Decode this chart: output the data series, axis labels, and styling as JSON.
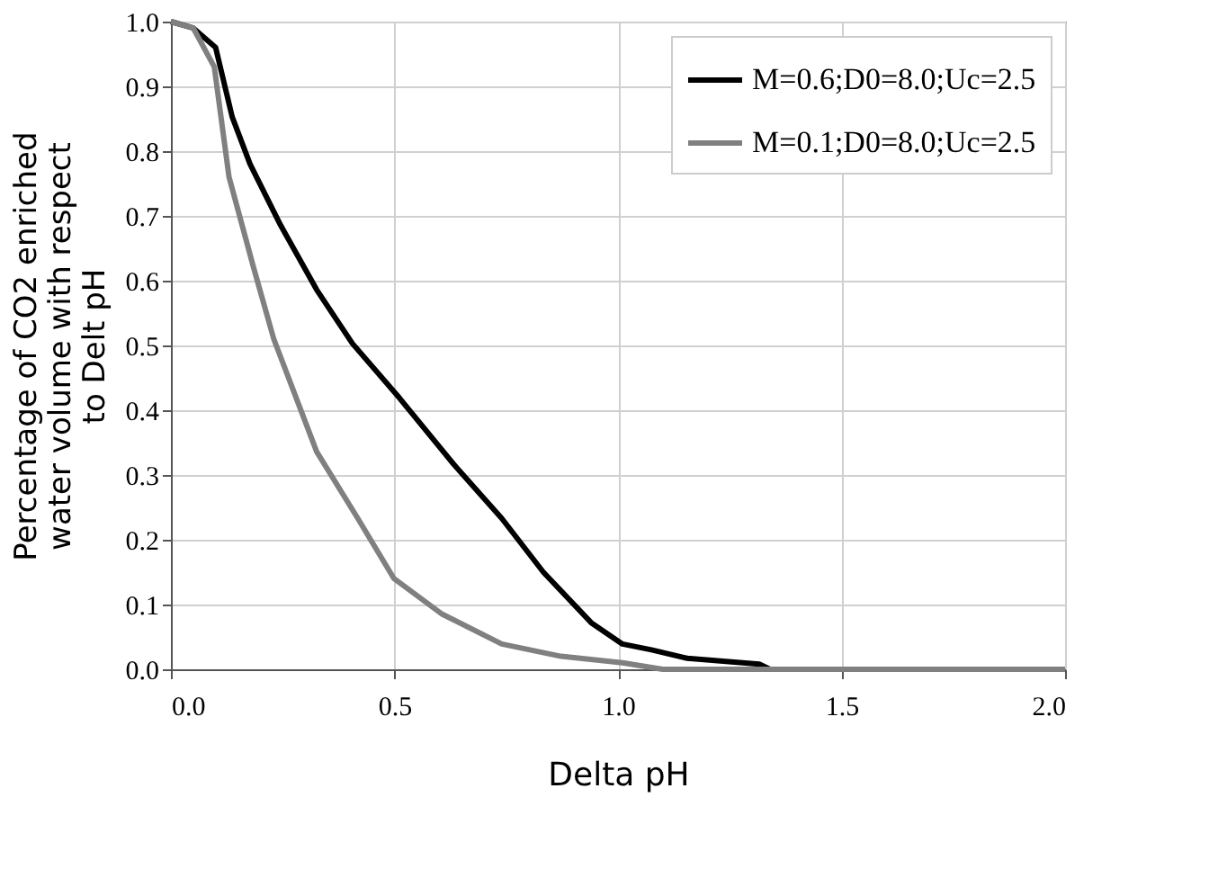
{
  "chart_data": {
    "type": "line",
    "xlabel": "Delta pH",
    "ylabel": "Percentage of CO2 enriched water volume with respect to Delt pH",
    "xlim": [
      0,
      2.0
    ],
    "ylim": [
      0,
      1.0
    ],
    "xticks": [
      {
        "value": 0,
        "label": "0.0"
      },
      0.5,
      {
        "value": 1,
        "label": "1.0"
      },
      1.5,
      {
        "value": 2,
        "label": "2.0"
      }
    ],
    "yticks": [
      {
        "value": 0,
        "label": "0.0"
      },
      0.1,
      0.2,
      0.3,
      0.4,
      0.5,
      0.6,
      0.7,
      0.8,
      0.9,
      {
        "value": 1,
        "label": "1.0"
      }
    ],
    "grid": true,
    "legend": "top right",
    "marker": "none",
    "line_style": "solid",
    "series": [
      {
        "name": "M=0.6;D0=8.0;Uc=2.5",
        "color": "#000000",
        "x": [
          0,
          0.05,
          0.1,
          0.137,
          0.177,
          0.245,
          0.326,
          0.406,
          0.511,
          0.632,
          0.74,
          0.833,
          0.94,
          1.01,
          1.075,
          1.155,
          1.316,
          1.34
        ],
        "values": [
          1.0,
          0.99,
          0.96,
          0.853,
          0.78,
          0.686,
          0.586,
          0.503,
          0.419,
          0.317,
          0.233,
          0.15,
          0.072,
          0.039,
          0.03,
          0.017,
          0.008,
          0.0
        ]
      },
      {
        "name": "M=0.1;D0=8.0;Uc=2.5",
        "color": "#808080",
        "x": [
          0,
          0.05,
          0.097,
          0.13,
          0.185,
          0.23,
          0.326,
          0.418,
          0.499,
          0.607,
          0.74,
          0.873,
          1.01,
          1.1,
          2.0
        ],
        "values": [
          1.0,
          0.99,
          0.93,
          0.76,
          0.62,
          0.51,
          0.336,
          0.233,
          0.14,
          0.085,
          0.039,
          0.02,
          0.01,
          0.0,
          0.0
        ]
      }
    ]
  }
}
